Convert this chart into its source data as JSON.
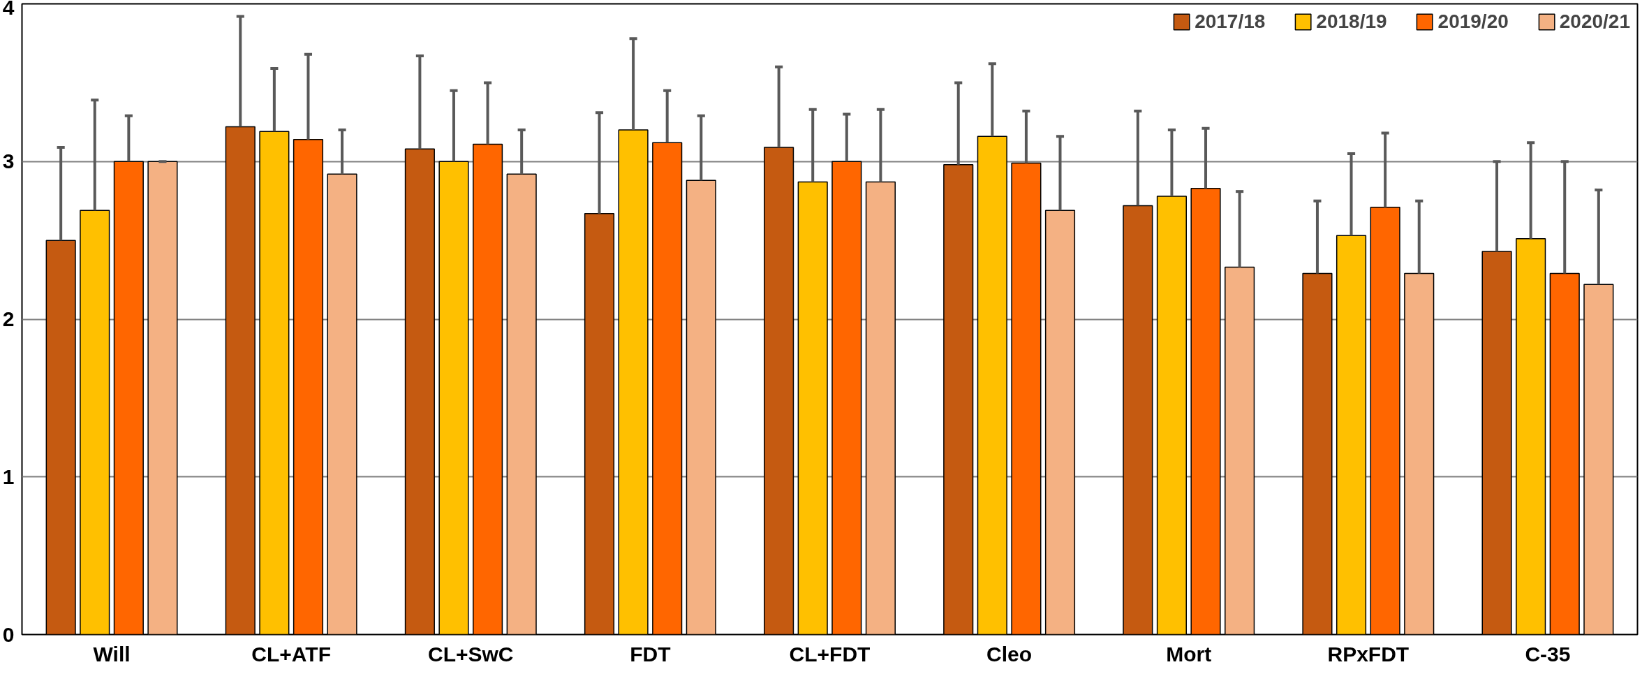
{
  "chart_data": {
    "type": "bar",
    "categories": [
      "Will",
      "CL+ATF",
      "CL+SwC",
      "FDT",
      "CL+FDT",
      "Cleo",
      "Mort",
      "RPxFDT",
      "C-35"
    ],
    "series": [
      {
        "name": "2017/18",
        "color": "#c55a11",
        "values": [
          2.5,
          3.22,
          3.08,
          2.67,
          3.09,
          2.98,
          2.72,
          2.29,
          2.43
        ],
        "errors": [
          [
            2.5,
            3.09
          ],
          [
            3.22,
            3.92
          ],
          [
            3.08,
            3.67
          ],
          [
            2.67,
            3.31
          ],
          [
            3.09,
            3.6
          ],
          [
            2.98,
            3.5
          ],
          [
            2.72,
            3.32
          ],
          [
            2.29,
            2.75
          ],
          [
            2.43,
            3.0
          ]
        ]
      },
      {
        "name": "2018/19",
        "color": "#ffc000",
        "values": [
          2.69,
          3.19,
          3.0,
          3.2,
          2.87,
          3.16,
          2.78,
          2.53,
          2.51
        ],
        "errors": [
          [
            2.69,
            3.39
          ],
          [
            3.19,
            3.59
          ],
          [
            3.0,
            3.45
          ],
          [
            3.2,
            3.78
          ],
          [
            2.87,
            3.33
          ],
          [
            3.16,
            3.62
          ],
          [
            2.78,
            3.2
          ],
          [
            2.53,
            3.05
          ],
          [
            2.51,
            3.12
          ]
        ]
      },
      {
        "name": "2019/20",
        "color": "#ff6600",
        "values": [
          3.0,
          3.14,
          3.11,
          3.12,
          3.0,
          2.99,
          2.83,
          2.71,
          2.29
        ],
        "errors": [
          [
            3.0,
            3.29
          ],
          [
            3.14,
            3.68
          ],
          [
            3.11,
            3.5
          ],
          [
            3.12,
            3.45
          ],
          [
            3.0,
            3.3
          ],
          [
            2.99,
            3.32
          ],
          [
            2.83,
            3.21
          ],
          [
            2.71,
            3.18
          ],
          [
            2.29,
            3.0
          ]
        ]
      },
      {
        "name": "2020/21",
        "color": "#f4b183",
        "values": [
          3.0,
          2.92,
          2.92,
          2.88,
          2.87,
          2.69,
          2.33,
          2.29,
          2.22
        ],
        "errors": [
          [
            3.0,
            3.0
          ],
          [
            2.92,
            3.2
          ],
          [
            2.92,
            3.2
          ],
          [
            2.88,
            3.29
          ],
          [
            2.87,
            3.33
          ],
          [
            2.69,
            3.16
          ],
          [
            2.33,
            2.81
          ],
          [
            2.29,
            2.75
          ],
          [
            2.22,
            2.82
          ]
        ]
      }
    ],
    "ylim": [
      0,
      4
    ],
    "yticks": [
      0,
      1,
      2,
      3,
      4
    ],
    "grid": "y",
    "legend": "top right"
  }
}
